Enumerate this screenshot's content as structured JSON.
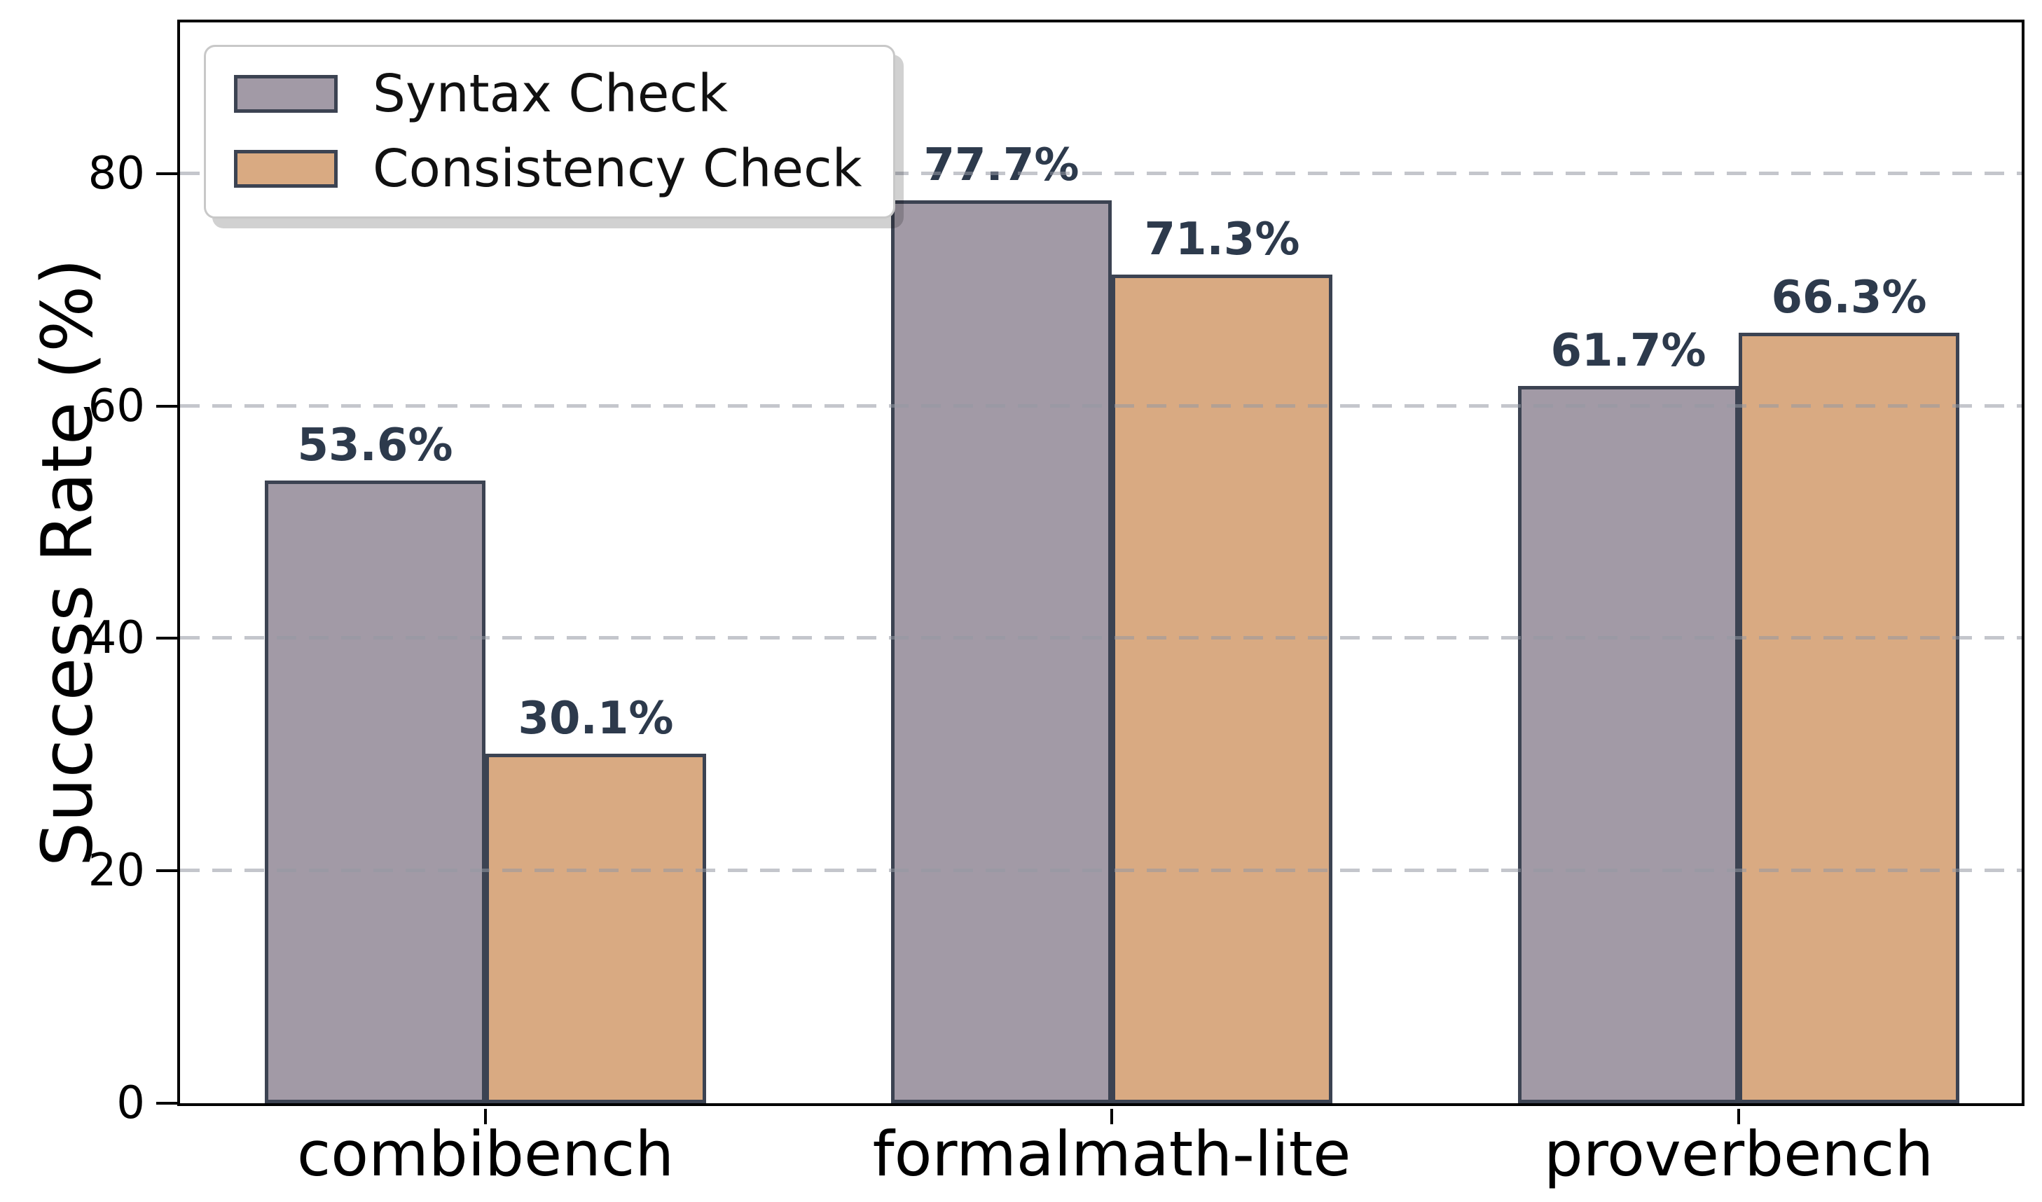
{
  "chart_data": {
    "type": "bar",
    "title": "",
    "categories": [
      "combibench",
      "formalmath-lite",
      "proverbench"
    ],
    "series": [
      {
        "name": "Syntax Check",
        "color": "#a29aa6",
        "values": [
          53.6,
          77.7,
          61.7
        ],
        "value_labels": [
          "53.6%",
          "77.7%",
          "61.7%"
        ]
      },
      {
        "name": "Consistency Check",
        "color": "#d9aa82",
        "values": [
          30.1,
          71.3,
          66.3
        ],
        "value_labels": [
          "30.1%",
          "71.3%",
          "66.3%"
        ]
      }
    ],
    "xlabel": "",
    "ylabel": "Success Rate (%)",
    "ylim": [
      0,
      93
    ],
    "yticks": [
      0,
      20,
      40,
      60,
      80
    ],
    "ytick_labels": [
      "0",
      "20",
      "40",
      "60",
      "80"
    ],
    "grid": "horizontal-dashed-over-bars",
    "legend_position": "upper-left",
    "colors": {
      "bar_edge": "#3c4352",
      "value_label_text": "#2d3a4c",
      "gridline": "#d5d8de",
      "axis_spine": "#000000",
      "legend_border": "#c8c8c8",
      "background": "#ffffff"
    }
  },
  "legend": {
    "items": [
      {
        "label": "Syntax Check",
        "swatch_color": "#a29aa6"
      },
      {
        "label": "Consistency Check",
        "swatch_color": "#d9aa82"
      }
    ]
  }
}
